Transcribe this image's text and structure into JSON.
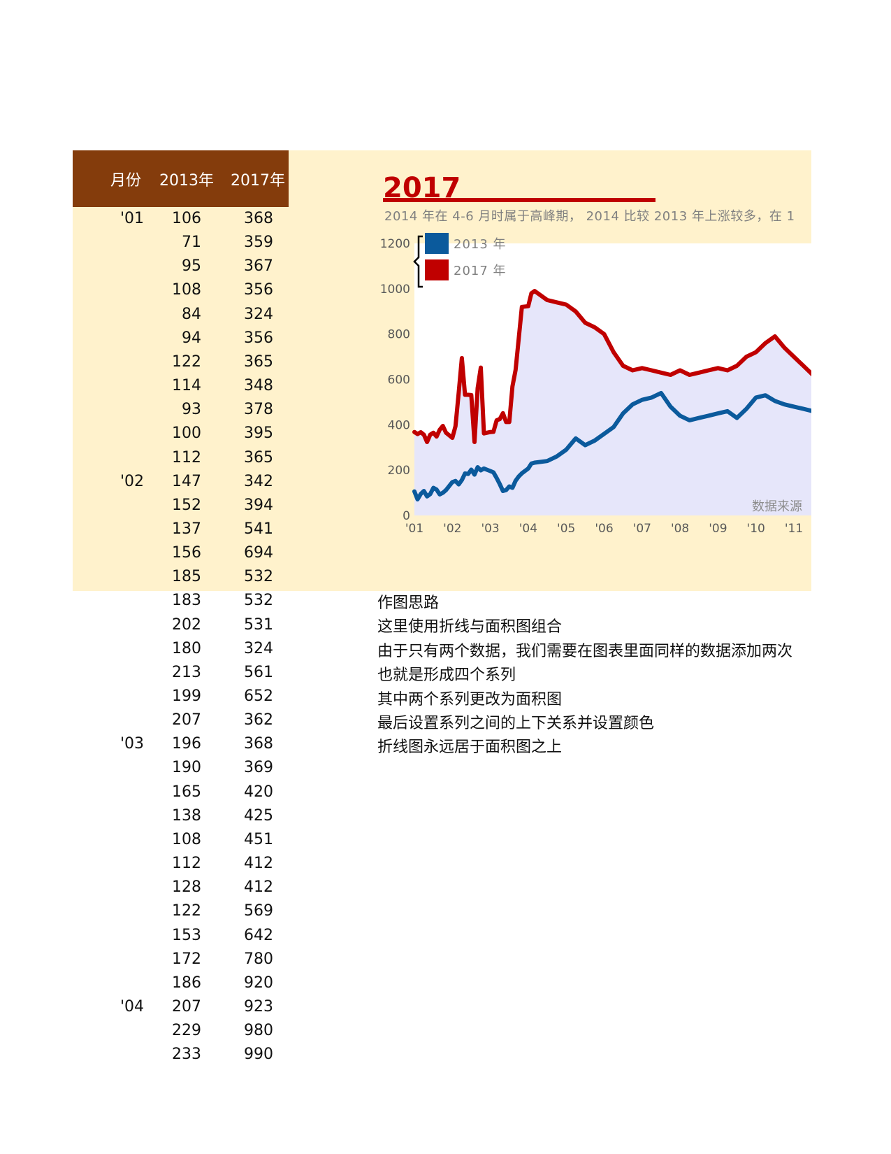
{
  "table": {
    "headers": [
      "月份",
      "2013年",
      "2017年"
    ],
    "rows": [
      [
        "'01",
        "106",
        "368"
      ],
      [
        "",
        "71",
        "359"
      ],
      [
        "",
        "95",
        "367"
      ],
      [
        "",
        "108",
        "356"
      ],
      [
        "",
        "84",
        "324"
      ],
      [
        "",
        "94",
        "356"
      ],
      [
        "",
        "122",
        "365"
      ],
      [
        "",
        "114",
        "348"
      ],
      [
        "",
        "93",
        "378"
      ],
      [
        "",
        "100",
        "395"
      ],
      [
        "",
        "112",
        "365"
      ],
      [
        "'02",
        "147",
        "342"
      ],
      [
        "",
        "152",
        "394"
      ],
      [
        "",
        "137",
        "541"
      ],
      [
        "",
        "156",
        "694"
      ],
      [
        "",
        "185",
        "532"
      ],
      [
        "",
        "183",
        "532"
      ],
      [
        "",
        "202",
        "531"
      ],
      [
        "",
        "180",
        "324"
      ],
      [
        "",
        "213",
        "561"
      ],
      [
        "",
        "199",
        "652"
      ],
      [
        "",
        "207",
        "362"
      ],
      [
        "'03",
        "196",
        "368"
      ],
      [
        "",
        "190",
        "369"
      ],
      [
        "",
        "165",
        "420"
      ],
      [
        "",
        "138",
        "425"
      ],
      [
        "",
        "108",
        "451"
      ],
      [
        "",
        "112",
        "412"
      ],
      [
        "",
        "128",
        "412"
      ],
      [
        "",
        "122",
        "569"
      ],
      [
        "",
        "153",
        "642"
      ],
      [
        "",
        "172",
        "780"
      ],
      [
        "",
        "186",
        "920"
      ],
      [
        "'04",
        "207",
        "923"
      ],
      [
        "",
        "229",
        "980"
      ],
      [
        "",
        "233",
        "990"
      ]
    ]
  },
  "chart": {
    "title": "2017",
    "subtitle": "2014 年在 4-6 月时属于高峰期， 2014 比较 2013 年上涨较多，在 1",
    "source_note": "数据来源",
    "legend": [
      "2013 年",
      "2017 年"
    ]
  },
  "notes": [
    "作图思路",
    "这里使用折线与面积图组合",
    "由于只有两个数据，我们需要在图表里面同样的数据添加两次",
    "也就是形成四个系列",
    "其中两个系列更改为面积图",
    "最后设置系列之间的上下关系并设置颜色",
    "折线图永远居于面积图之上"
  ],
  "chart_data": {
    "type": "line",
    "title": "2017",
    "x_ticks": [
      "'01",
      "'02",
      "'03",
      "'04",
      "'05",
      "'06",
      "'07",
      "'08",
      "'09",
      "'10",
      "'11"
    ],
    "ylim": [
      0,
      1200
    ],
    "y_ticks": [
      0,
      200,
      400,
      600,
      800,
      1000,
      1200
    ],
    "legend_position": "top-left",
    "series": [
      {
        "name": "2013 年",
        "color": "#0b5a9c",
        "x": [
          1.0,
          1.083,
          1.167,
          1.25,
          1.333,
          1.417,
          1.5,
          1.583,
          1.667,
          1.75,
          1.833,
          2.0,
          2.083,
          2.167,
          2.25,
          2.333,
          2.417,
          2.5,
          2.583,
          2.667,
          2.75,
          2.833,
          3.0,
          3.083,
          3.167,
          3.25,
          3.333,
          3.417,
          3.5,
          3.583,
          3.667,
          3.75,
          3.833,
          4.0,
          4.083,
          4.167,
          4.5,
          4.75,
          5.0,
          5.25,
          5.5,
          5.75,
          6.0,
          6.25,
          6.5,
          6.75,
          7.0,
          7.25,
          7.5,
          7.75,
          8.0,
          8.25,
          8.5,
          8.75,
          9.0,
          9.25,
          9.5,
          9.75,
          10.0,
          10.25,
          10.5,
          10.75,
          11.0,
          11.25,
          11.5
        ],
        "values": [
          106,
          71,
          95,
          108,
          84,
          94,
          122,
          114,
          93,
          100,
          112,
          147,
          152,
          137,
          156,
          185,
          183,
          202,
          180,
          213,
          199,
          207,
          196,
          190,
          165,
          138,
          108,
          112,
          128,
          122,
          153,
          172,
          186,
          207,
          229,
          233,
          240,
          260,
          290,
          340,
          310,
          330,
          360,
          390,
          450,
          490,
          510,
          520,
          540,
          480,
          440,
          420,
          430,
          440,
          450,
          460,
          430,
          470,
          520,
          530,
          505,
          490,
          480,
          470,
          460
        ],
        "unit_note": ""
      },
      {
        "name": "2017 年",
        "color": "#c00000",
        "x": [
          1.0,
          1.083,
          1.167,
          1.25,
          1.333,
          1.417,
          1.5,
          1.583,
          1.667,
          1.75,
          1.833,
          2.0,
          2.083,
          2.167,
          2.25,
          2.333,
          2.417,
          2.5,
          2.583,
          2.667,
          2.75,
          2.833,
          3.0,
          3.083,
          3.167,
          3.25,
          3.333,
          3.417,
          3.5,
          3.583,
          3.667,
          3.75,
          3.833,
          4.0,
          4.083,
          4.167,
          4.5,
          4.75,
          5.0,
          5.25,
          5.5,
          5.75,
          6.0,
          6.25,
          6.5,
          6.75,
          7.0,
          7.25,
          7.5,
          7.75,
          8.0,
          8.25,
          8.5,
          8.75,
          9.0,
          9.25,
          9.5,
          9.75,
          10.0,
          10.25,
          10.5,
          10.75,
          11.0,
          11.25,
          11.5
        ],
        "values": [
          368,
          359,
          367,
          356,
          324,
          356,
          365,
          348,
          378,
          395,
          365,
          342,
          394,
          541,
          694,
          532,
          532,
          531,
          324,
          561,
          652,
          362,
          368,
          369,
          420,
          425,
          451,
          412,
          412,
          569,
          642,
          780,
          920,
          923,
          980,
          990,
          950,
          940,
          930,
          900,
          850,
          830,
          800,
          720,
          660,
          640,
          650,
          640,
          630,
          620,
          640,
          620,
          630,
          640,
          650,
          640,
          660,
          700,
          720,
          760,
          790,
          740,
          700,
          660,
          620
        ]
      }
    ]
  }
}
